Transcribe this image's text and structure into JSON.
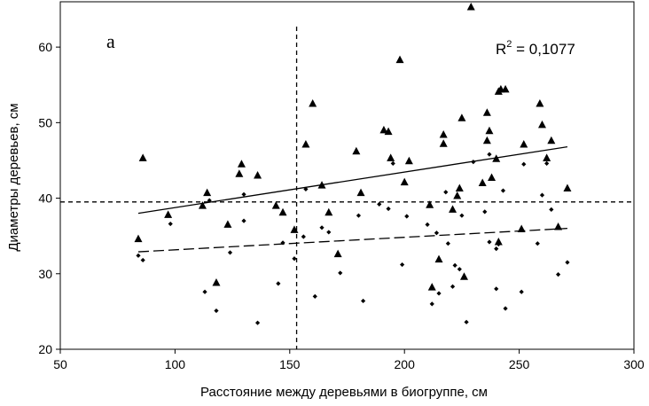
{
  "chart_data": {
    "type": "scatter",
    "panel_label": "а",
    "xlabel": "Расстояние между деревьями в биогруппе,  см",
    "ylabel": "Диаметры  деревьев,  см",
    "xlim": [
      50,
      300
    ],
    "ylim": [
      20,
      66
    ],
    "x_ticks": [
      50,
      100,
      150,
      200,
      250,
      300
    ],
    "y_ticks": [
      20,
      30,
      40,
      50,
      60
    ],
    "x_tick_labels": [
      "50",
      "100",
      "150",
      "200",
      "250",
      "300"
    ],
    "y_tick_labels": [
      "20",
      "30",
      "40",
      "50",
      "60"
    ],
    "grid": false,
    "annotation": {
      "base": "R",
      "sup": "2",
      "rest": " = 0,1077"
    },
    "reference_lines": {
      "vertical_x": 153,
      "horizontal_y": 39.5
    },
    "series": [
      {
        "marker": "triangle",
        "points": [
          [
            84,
            34.6
          ],
          [
            86,
            45.3
          ],
          [
            97,
            37.8
          ],
          [
            112,
            39.0
          ],
          [
            114,
            40.7
          ],
          [
            118,
            28.8
          ],
          [
            123,
            36.5
          ],
          [
            128,
            43.2
          ],
          [
            129,
            44.5
          ],
          [
            136,
            43.0
          ],
          [
            144,
            39.0
          ],
          [
            147,
            38.1
          ],
          [
            152,
            35.8
          ],
          [
            157,
            47.1
          ],
          [
            160,
            52.5
          ],
          [
            164,
            41.7
          ],
          [
            167,
            38.1
          ],
          [
            171,
            32.6
          ],
          [
            179,
            46.2
          ],
          [
            181,
            40.7
          ],
          [
            191,
            49.0
          ],
          [
            193,
            48.8
          ],
          [
            194,
            45.3
          ],
          [
            198,
            58.3
          ],
          [
            200,
            42.1
          ],
          [
            202,
            44.9
          ],
          [
            211,
            39.1
          ],
          [
            212,
            28.2
          ],
          [
            215,
            31.9
          ],
          [
            217,
            48.4
          ],
          [
            217,
            47.2
          ],
          [
            221,
            38.5
          ],
          [
            223,
            40.3
          ],
          [
            224,
            41.3
          ],
          [
            225,
            50.6
          ],
          [
            226,
            29.6
          ],
          [
            229,
            65.3
          ],
          [
            234,
            42.0
          ],
          [
            236,
            47.6
          ],
          [
            236,
            51.3
          ],
          [
            237,
            48.9
          ],
          [
            238,
            42.7
          ],
          [
            240,
            45.2
          ],
          [
            241,
            54.1
          ],
          [
            241,
            34.2
          ],
          [
            242,
            54.4
          ],
          [
            244,
            54.4
          ],
          [
            251,
            35.9
          ],
          [
            252,
            47.1
          ],
          [
            259,
            52.5
          ],
          [
            260,
            49.7
          ],
          [
            262,
            45.3
          ],
          [
            264,
            47.6
          ],
          [
            267,
            36.2
          ],
          [
            271,
            41.3
          ]
        ]
      },
      {
        "marker": "diamond",
        "points": [
          [
            84,
            32.4
          ],
          [
            86,
            31.8
          ],
          [
            98,
            36.6
          ],
          [
            113,
            27.6
          ],
          [
            115,
            39.7
          ],
          [
            118,
            25.1
          ],
          [
            124,
            32.8
          ],
          [
            130,
            37.0
          ],
          [
            130,
            40.5
          ],
          [
            136,
            23.5
          ],
          [
            145,
            28.7
          ],
          [
            147,
            34.1
          ],
          [
            152,
            32.0
          ],
          [
            156,
            34.9
          ],
          [
            157,
            41.2
          ],
          [
            161,
            27.0
          ],
          [
            164,
            36.1
          ],
          [
            167,
            35.5
          ],
          [
            172,
            30.1
          ],
          [
            180,
            37.7
          ],
          [
            182,
            26.4
          ],
          [
            189,
            39.2
          ],
          [
            193,
            38.6
          ],
          [
            195,
            44.6
          ],
          [
            199,
            31.2
          ],
          [
            201,
            37.6
          ],
          [
            210,
            36.5
          ],
          [
            212,
            26.0
          ],
          [
            214,
            35.4
          ],
          [
            215,
            27.4
          ],
          [
            218,
            40.8
          ],
          [
            219,
            34.0
          ],
          [
            221,
            28.3
          ],
          [
            222,
            31.1
          ],
          [
            224,
            30.6
          ],
          [
            225,
            37.7
          ],
          [
            227,
            23.6
          ],
          [
            230,
            44.8
          ],
          [
            235,
            38.2
          ],
          [
            237,
            34.2
          ],
          [
            237,
            45.8
          ],
          [
            240,
            33.3
          ],
          [
            240,
            28.0
          ],
          [
            241,
            33.9
          ],
          [
            243,
            41.0
          ],
          [
            244,
            25.4
          ],
          [
            251,
            27.6
          ],
          [
            252,
            44.5
          ],
          [
            258,
            34.0
          ],
          [
            260,
            40.4
          ],
          [
            262,
            44.6
          ],
          [
            264,
            38.5
          ],
          [
            267,
            29.9
          ],
          [
            271,
            31.5
          ]
        ]
      }
    ],
    "trendlines": [
      {
        "style": "solid",
        "x": [
          84,
          271
        ],
        "y": [
          38.0,
          46.8
        ]
      },
      {
        "style": "dashed",
        "x": [
          84,
          271
        ],
        "y": [
          32.9,
          36.0
        ]
      }
    ]
  }
}
